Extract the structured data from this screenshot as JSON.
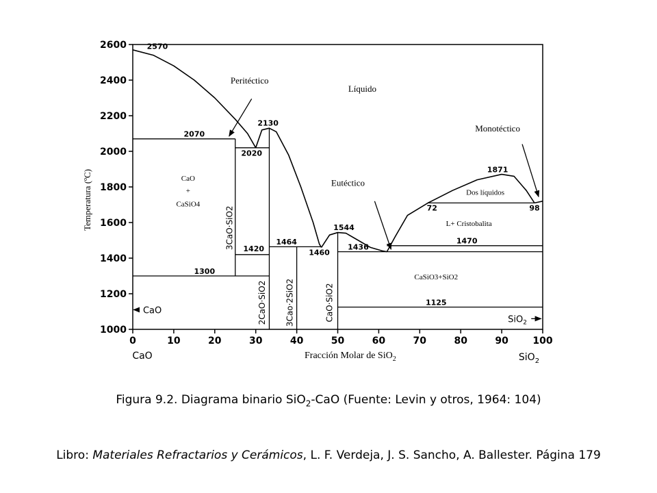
{
  "chart_data": {
    "type": "line",
    "title": "Diagrama binario SiO2-CaO",
    "xlabel": "Fracción Molar de SiO",
    "xlabel_sub": "2",
    "ylabel": "Temperatura (ºC)",
    "xlim": [
      0,
      100
    ],
    "ylim": [
      1000,
      2600
    ],
    "x_ticks": [
      "0",
      "10",
      "20",
      "30",
      "40",
      "50",
      "60",
      "70",
      "80",
      "90",
      "100"
    ],
    "y_ticks": [
      "1000",
      "1200",
      "1400",
      "1600",
      "1800",
      "2000",
      "2200",
      "2400",
      "2600"
    ],
    "x_end_left": "CaO",
    "x_end_right": "SiO",
    "x_end_right_sub": "2",
    "liquidus": [
      {
        "name": "CaO liquidus",
        "x": [
          0,
          5,
          10,
          15,
          20,
          25,
          28,
          30
        ],
        "y": [
          2570,
          2540,
          2480,
          2400,
          2300,
          2180,
          2100,
          2020
        ]
      },
      {
        "name": "2CaO·SiO2 liquidus",
        "x": [
          30,
          31.5,
          33.3,
          35,
          38,
          41,
          44,
          45.5,
          46
        ],
        "y": [
          2020,
          2120,
          2130,
          2110,
          1980,
          1800,
          1600,
          1480,
          1460
        ]
      },
      {
        "name": "CaO·SiO2 liquidus",
        "x": [
          46,
          48,
          50,
          52,
          55,
          58,
          61,
          62
        ],
        "y": [
          1460,
          1530,
          1544,
          1540,
          1500,
          1460,
          1440,
          1436
        ]
      },
      {
        "name": "SiO2 liquidus",
        "x": [
          62,
          64,
          67,
          72,
          78,
          84,
          90,
          93,
          96,
          98
        ],
        "y": [
          1436,
          1520,
          1640,
          1710,
          1780,
          1840,
          1871,
          1860,
          1780,
          1710
        ]
      },
      {
        "name": "Cristobalite",
        "x": [
          98,
          100
        ],
        "y": [
          1710,
          1720
        ]
      }
    ],
    "isotherms": [
      {
        "x": [
          0,
          25
        ],
        "y": [
          2070,
          2070
        ]
      },
      {
        "x": [
          25,
          33.3
        ],
        "y": [
          2020,
          2020
        ]
      },
      {
        "x": [
          0,
          33.3
        ],
        "y": [
          1300,
          1300
        ]
      },
      {
        "x": [
          25,
          33.3
        ],
        "y": [
          1420,
          1420
        ]
      },
      {
        "x": [
          33.3,
          46
        ],
        "y": [
          1464,
          1464
        ]
      },
      {
        "x": [
          50,
          100
        ],
        "y": [
          1436,
          1436
        ]
      },
      {
        "x": [
          62,
          100
        ],
        "y": [
          1470,
          1470
        ]
      },
      {
        "x": [
          72,
          98
        ],
        "y": [
          1710,
          1710
        ]
      },
      {
        "x": [
          50,
          100
        ],
        "y": [
          1125,
          1125
        ]
      }
    ],
    "compound_lines": [
      {
        "x": 25,
        "y_from": 1300,
        "y_to": 2070
      },
      {
        "x": 33.3,
        "y_from": 1000,
        "y_to": 2130
      },
      {
        "x": 40,
        "y_from": 1000,
        "y_to": 1464
      },
      {
        "x": 50,
        "y_from": 1000,
        "y_to": 1544
      }
    ],
    "temperature_labels": [
      {
        "text": "2570",
        "x": 6,
        "y": 2575
      },
      {
        "text": "2070",
        "x": 15,
        "y": 2082
      },
      {
        "text": "2020",
        "x": 29,
        "y": 1975
      },
      {
        "text": "2130",
        "x": 33,
        "y": 2145
      },
      {
        "text": "1420",
        "x": 29.5,
        "y": 1438
      },
      {
        "text": "1300",
        "x": 17.5,
        "y": 1312
      },
      {
        "text": "1464",
        "x": 37.5,
        "y": 1476
      },
      {
        "text": "1460",
        "x": 45.5,
        "y": 1418
      },
      {
        "text": "1544",
        "x": 51.5,
        "y": 1557
      },
      {
        "text": "1436",
        "x": 55,
        "y": 1448
      },
      {
        "text": "1470",
        "x": 81.5,
        "y": 1482
      },
      {
        "text": "1871",
        "x": 89,
        "y": 1883
      },
      {
        "text": "72",
        "x": 73,
        "y": 1667
      },
      {
        "text": "98",
        "x": 98,
        "y": 1667
      },
      {
        "text": "1125",
        "x": 74,
        "y": 1137
      }
    ],
    "phase_fields": [
      {
        "lines": [
          "CaO",
          "+",
          "CaSiO4"
        ],
        "x": 13.5,
        "y": [
          1835,
          1765,
          1690
        ]
      },
      {
        "lines": [
          "Líquido"
        ],
        "x": 56,
        "y": [
          2335
        ]
      },
      {
        "lines": [
          "Dos líquidos"
        ],
        "x": 86,
        "y": [
          1755
        ]
      },
      {
        "lines": [
          "L+ Cristobalita"
        ],
        "x": 82,
        "y": [
          1580
        ]
      },
      {
        "lines": [
          "CaSiO3+SiO2"
        ],
        "x": 74,
        "y": [
          1280
        ]
      }
    ],
    "compounds": [
      {
        "label": "3CaO·SiO2",
        "x": 24.3,
        "y": 1570
      },
      {
        "label": "2CaO·SiO2",
        "x": 32.2,
        "y": 1150
      },
      {
        "label": "3Cao·2SiO2",
        "x": 39,
        "y": 1150
      },
      {
        "label": "CaO·SiO2",
        "x": 48.7,
        "y": 1150
      }
    ],
    "annotations": [
      {
        "text": "Peritéctico",
        "arrow_from": [
          29,
          2295
        ],
        "arrow_to": [
          23.5,
          2085
        ]
      },
      {
        "text": "Eutéctico",
        "arrow_from": [
          59,
          1720
        ],
        "arrow_to": [
          63,
          1450
        ]
      },
      {
        "text": "Monotéctico",
        "arrow_from": [
          95,
          2040
        ],
        "arrow_to": [
          99,
          1745
        ]
      }
    ]
  },
  "captions": {
    "figure": "Figura 9.2. Diagrama binario SiO",
    "figure_sub": "2",
    "figure_rest": "-CaO (Fuente: Levin y otros, 1964: 104)",
    "book_prefix": "Libro: ",
    "book_title": "Materiales Refractarios y Cerámicos",
    "book_rest": ", L. F. Verdeja, J. S. Sancho, A. Ballester. Página 179"
  },
  "colors": {
    "line": "#000000",
    "background": "#ffffff"
  }
}
